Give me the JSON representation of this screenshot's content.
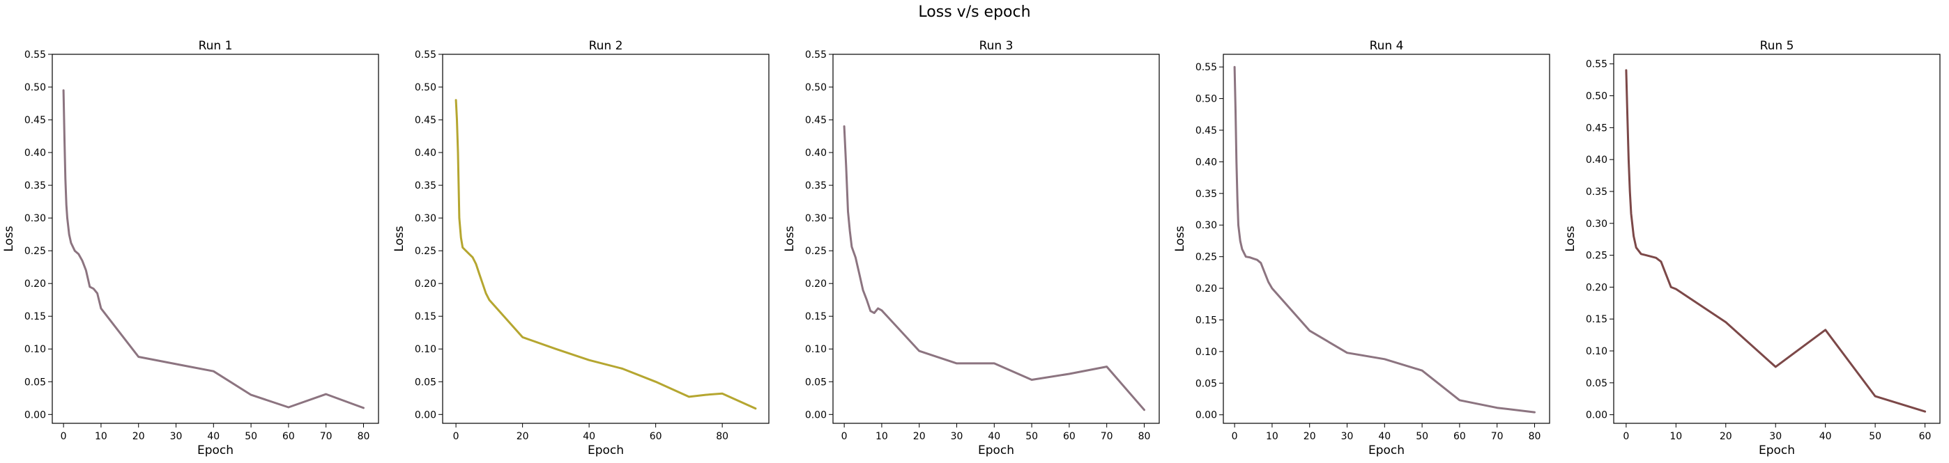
{
  "figure": {
    "title": "Loss v/s epoch"
  },
  "chart_data": [
    {
      "type": "line",
      "title": "Run 1",
      "xlabel": "Epoch",
      "ylabel": "Loss",
      "xlim": [
        -3,
        84
      ],
      "ylim": [
        -0.0135,
        0.55
      ],
      "xticks": [
        0,
        10,
        20,
        30,
        40,
        50,
        60,
        70,
        80
      ],
      "yticks": [
        0.0,
        0.05,
        0.1,
        0.15,
        0.2,
        0.25,
        0.3,
        0.35,
        0.4,
        0.45,
        0.5,
        0.55
      ],
      "color": "#8c7480",
      "x": [
        0,
        0.25,
        0.5,
        0.75,
        1,
        1.5,
        2,
        3,
        4,
        5,
        6,
        7,
        8,
        9,
        10,
        20,
        30,
        40,
        50,
        60,
        70,
        80
      ],
      "y": [
        0.495,
        0.42,
        0.36,
        0.32,
        0.3,
        0.275,
        0.262,
        0.25,
        0.245,
        0.235,
        0.22,
        0.195,
        0.192,
        0.185,
        0.162,
        0.088,
        0.077,
        0.066,
        0.03,
        0.011,
        0.031,
        0.01
      ]
    },
    {
      "type": "line",
      "title": "Run 2",
      "xlabel": "Epoch",
      "ylabel": "Loss",
      "xlim": [
        -4,
        94
      ],
      "ylim": [
        -0.0135,
        0.55
      ],
      "xticks": [
        0,
        20,
        40,
        60,
        80
      ],
      "yticks": [
        0.0,
        0.05,
        0.1,
        0.15,
        0.2,
        0.25,
        0.3,
        0.35,
        0.4,
        0.45,
        0.5,
        0.55
      ],
      "color": "#b5a630",
      "x": [
        0,
        0.3,
        0.6,
        1,
        1.5,
        2,
        3,
        4,
        5,
        6,
        7,
        8,
        9,
        10,
        20,
        30,
        40,
        50,
        60,
        70,
        75,
        80,
        90
      ],
      "y": [
        0.48,
        0.45,
        0.4,
        0.3,
        0.27,
        0.255,
        0.25,
        0.245,
        0.24,
        0.23,
        0.215,
        0.2,
        0.185,
        0.175,
        0.118,
        0.1,
        0.083,
        0.07,
        0.05,
        0.027,
        0.03,
        0.032,
        0.009
      ]
    },
    {
      "type": "line",
      "title": "Run 3",
      "xlabel": "Epoch",
      "ylabel": "Loss",
      "xlim": [
        -3,
        84
      ],
      "ylim": [
        -0.0135,
        0.55
      ],
      "xticks": [
        0,
        10,
        20,
        30,
        40,
        50,
        60,
        70,
        80
      ],
      "yticks": [
        0.0,
        0.05,
        0.1,
        0.15,
        0.2,
        0.25,
        0.3,
        0.35,
        0.4,
        0.45,
        0.5,
        0.55
      ],
      "color": "#8c7480",
      "x": [
        0,
        0.5,
        1,
        1.5,
        2,
        3,
        4,
        5,
        6,
        7,
        8,
        9,
        10,
        20,
        30,
        40,
        50,
        60,
        70,
        80
      ],
      "y": [
        0.44,
        0.38,
        0.31,
        0.28,
        0.256,
        0.24,
        0.215,
        0.19,
        0.175,
        0.158,
        0.155,
        0.162,
        0.159,
        0.097,
        0.078,
        0.078,
        0.053,
        0.062,
        0.073,
        0.007
      ]
    },
    {
      "type": "line",
      "title": "Run 4",
      "xlabel": "Epoch",
      "ylabel": "Loss",
      "xlim": [
        -3,
        84
      ],
      "ylim": [
        -0.0135,
        0.57
      ],
      "xticks": [
        0,
        10,
        20,
        30,
        40,
        50,
        60,
        70,
        80
      ],
      "yticks": [
        0.0,
        0.05,
        0.1,
        0.15,
        0.2,
        0.25,
        0.3,
        0.35,
        0.4,
        0.45,
        0.5,
        0.55
      ],
      "color": "#8c7480",
      "x": [
        0,
        0.25,
        0.5,
        0.75,
        1,
        1.5,
        2,
        3,
        4,
        5,
        6,
        7,
        8,
        9,
        10,
        20,
        30,
        40,
        50,
        60,
        70,
        80
      ],
      "y": [
        0.55,
        0.48,
        0.4,
        0.34,
        0.3,
        0.275,
        0.262,
        0.25,
        0.249,
        0.247,
        0.245,
        0.24,
        0.225,
        0.21,
        0.2,
        0.133,
        0.098,
        0.088,
        0.07,
        0.023,
        0.011,
        0.004
      ]
    },
    {
      "type": "line",
      "title": "Run 5",
      "xlabel": "Epoch",
      "ylabel": "Loss",
      "xlim": [
        -2.5,
        63
      ],
      "ylim": [
        -0.0135,
        0.565
      ],
      "xticks": [
        0,
        10,
        20,
        30,
        40,
        50,
        60
      ],
      "yticks": [
        0.0,
        0.05,
        0.1,
        0.15,
        0.2,
        0.25,
        0.3,
        0.35,
        0.4,
        0.45,
        0.5,
        0.55
      ],
      "color": "#7c4848",
      "x": [
        0,
        0.25,
        0.5,
        0.75,
        1,
        1.5,
        2,
        3,
        4,
        5,
        6,
        7,
        8,
        9,
        10,
        20,
        30,
        40,
        50,
        60
      ],
      "y": [
        0.54,
        0.47,
        0.4,
        0.35,
        0.315,
        0.28,
        0.262,
        0.252,
        0.25,
        0.248,
        0.246,
        0.24,
        0.22,
        0.2,
        0.197,
        0.145,
        0.075,
        0.133,
        0.029,
        0.005
      ]
    }
  ]
}
